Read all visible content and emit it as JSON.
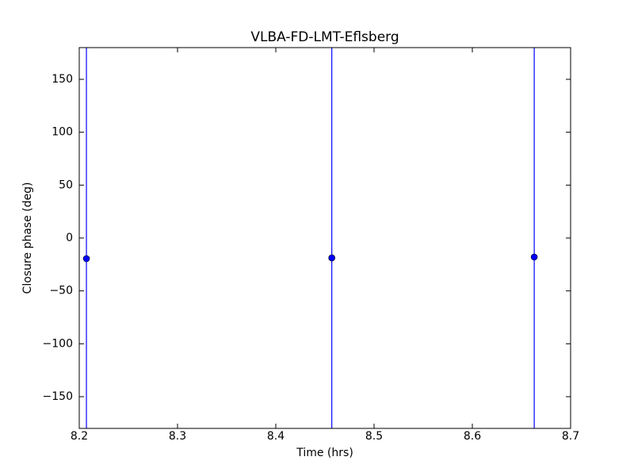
{
  "chart_data": {
    "type": "scatter",
    "title": "VLBA-FD-LMT-Eflsberg",
    "x_label": "Time (hrs)",
    "y_label": "Closure phase (deg)",
    "x": [
      8.2073,
      8.457,
      8.663
    ],
    "values": [
      -19.5,
      -18.8,
      -18
    ],
    "errors": [
      200,
      200,
      200
    ],
    "color": "#0000ff",
    "xlim": [
      8.2,
      8.7
    ],
    "xticks": [
      8.2,
      8.3,
      8.4,
      8.5,
      8.6,
      8.7
    ],
    "ylim": [
      -180,
      180
    ],
    "yticks": [
      {
        "value": -150,
        "label": "−150"
      },
      {
        "value": -100,
        "label": "−100"
      },
      {
        "value": -50,
        "label": "−50"
      },
      0,
      50,
      100,
      150
    ]
  }
}
